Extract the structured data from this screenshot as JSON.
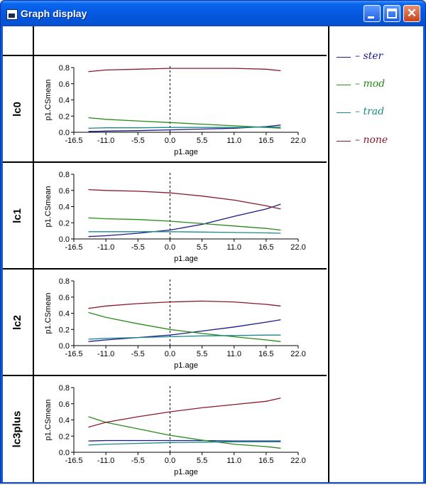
{
  "window": {
    "title": "Graph display",
    "close_glyph": "✕"
  },
  "panels": [
    {
      "label": "lc0"
    },
    {
      "label": "lc1"
    },
    {
      "label": "lc2"
    },
    {
      "label": "lc3plus"
    }
  ],
  "legend": [
    {
      "label": "– ster",
      "color": "#1a1a8a"
    },
    {
      "label": "– mod",
      "color": "#2a8a1a"
    },
    {
      "label": "– trad",
      "color": "#1a8a8a"
    },
    {
      "label": "– none",
      "color": "#8a1a2a"
    }
  ],
  "chart_data": [
    {
      "type": "line",
      "title": "lc0",
      "xlabel": "p1.age",
      "ylabel": "p1.CSmean",
      "xlim": [
        -16.5,
        22.0
      ],
      "ylim": [
        0,
        0.8
      ],
      "xticks": [
        "-16.5",
        "-11.0",
        "-5.5",
        "0.0",
        "5.5",
        "11.0",
        "16.5",
        "22.0"
      ],
      "yticks": [
        "0.0",
        "0.2",
        "0.4",
        "0.6",
        "0.8"
      ],
      "reference_line_x": 0,
      "x": [
        -14,
        -11,
        -5.5,
        0,
        5.5,
        11,
        16.5,
        19
      ],
      "series": [
        {
          "name": "ster",
          "color": "#1a1a8a",
          "values": [
            0.01,
            0.015,
            0.02,
            0.03,
            0.04,
            0.05,
            0.07,
            0.09
          ]
        },
        {
          "name": "mod",
          "color": "#2a8a1a",
          "values": [
            0.18,
            0.16,
            0.14,
            0.12,
            0.1,
            0.08,
            0.06,
            0.05
          ]
        },
        {
          "name": "trad",
          "color": "#1a8a8a",
          "values": [
            0.05,
            0.055,
            0.055,
            0.06,
            0.06,
            0.06,
            0.065,
            0.065
          ]
        },
        {
          "name": "none",
          "color": "#8a1a2a",
          "values": [
            0.75,
            0.77,
            0.78,
            0.79,
            0.79,
            0.79,
            0.78,
            0.76
          ]
        }
      ]
    },
    {
      "type": "line",
      "title": "lc1",
      "xlabel": "p1.age",
      "ylabel": "p1.CSmean",
      "xlim": [
        -16.5,
        22.0
      ],
      "ylim": [
        0,
        0.8
      ],
      "xticks": [
        "-16.5",
        "-11.0",
        "-5.5",
        "0.0",
        "5.5",
        "11.0",
        "16.5",
        "22.0"
      ],
      "yticks": [
        "0.0",
        "0.2",
        "0.4",
        "0.6",
        "0.8"
      ],
      "reference_line_x": 0,
      "x": [
        -14,
        -11,
        -5.5,
        0,
        5.5,
        11,
        16.5,
        19
      ],
      "series": [
        {
          "name": "ster",
          "color": "#1a1a8a",
          "values": [
            0.03,
            0.04,
            0.07,
            0.11,
            0.18,
            0.28,
            0.37,
            0.43
          ]
        },
        {
          "name": "mod",
          "color": "#2a8a1a",
          "values": [
            0.26,
            0.25,
            0.24,
            0.22,
            0.19,
            0.16,
            0.13,
            0.11
          ]
        },
        {
          "name": "trad",
          "color": "#1a8a8a",
          "values": [
            0.09,
            0.09,
            0.09,
            0.09,
            0.085,
            0.08,
            0.075,
            0.07
          ]
        },
        {
          "name": "none",
          "color": "#8a1a2a",
          "values": [
            0.61,
            0.6,
            0.59,
            0.57,
            0.53,
            0.48,
            0.41,
            0.37
          ]
        }
      ]
    },
    {
      "type": "line",
      "title": "lc2",
      "xlabel": "p1.age",
      "ylabel": "p1.CSmean",
      "xlim": [
        -16.5,
        22.0
      ],
      "ylim": [
        0,
        0.8
      ],
      "xticks": [
        "-16.5",
        "-11.0",
        "-5.5",
        "0.0",
        "5.5",
        "11.0",
        "16.5",
        "22.0"
      ],
      "yticks": [
        "0.0",
        "0.2",
        "0.4",
        "0.6",
        "0.8"
      ],
      "reference_line_x": 0,
      "x": [
        -14,
        -11,
        -5.5,
        0,
        5.5,
        11,
        16.5,
        19
      ],
      "series": [
        {
          "name": "ster",
          "color": "#1a1a8a",
          "values": [
            0.05,
            0.07,
            0.1,
            0.13,
            0.18,
            0.23,
            0.29,
            0.32
          ]
        },
        {
          "name": "mod",
          "color": "#2a8a1a",
          "values": [
            0.41,
            0.35,
            0.27,
            0.2,
            0.15,
            0.11,
            0.07,
            0.05
          ]
        },
        {
          "name": "trad",
          "color": "#1a8a8a",
          "values": [
            0.08,
            0.09,
            0.1,
            0.11,
            0.12,
            0.125,
            0.13,
            0.13
          ]
        },
        {
          "name": "none",
          "color": "#8a1a2a",
          "values": [
            0.46,
            0.49,
            0.52,
            0.54,
            0.55,
            0.54,
            0.51,
            0.49
          ]
        }
      ]
    },
    {
      "type": "line",
      "title": "lc3plus",
      "xlabel": "p1.age",
      "ylabel": "p1.CSmean",
      "xlim": [
        -16.5,
        22.0
      ],
      "ylim": [
        0,
        0.8
      ],
      "xticks": [
        "-16.5",
        "-11.0",
        "-5.5",
        "0.0",
        "5.5",
        "11.0",
        "16.5",
        "22.0"
      ],
      "yticks": [
        "0.0",
        "0.2",
        "0.4",
        "0.6",
        "0.8"
      ],
      "reference_line_x": 0,
      "x": [
        -14,
        -11,
        -5.5,
        0,
        5.5,
        11,
        16.5,
        19
      ],
      "series": [
        {
          "name": "ster",
          "color": "#1a1a8a",
          "values": [
            0.14,
            0.145,
            0.145,
            0.145,
            0.145,
            0.14,
            0.14,
            0.14
          ]
        },
        {
          "name": "mod",
          "color": "#2a8a1a",
          "values": [
            0.44,
            0.37,
            0.29,
            0.21,
            0.15,
            0.1,
            0.07,
            0.05
          ]
        },
        {
          "name": "trad",
          "color": "#1a8a8a",
          "values": [
            0.09,
            0.1,
            0.11,
            0.12,
            0.125,
            0.13,
            0.13,
            0.13
          ]
        },
        {
          "name": "none",
          "color": "#8a1a2a",
          "values": [
            0.31,
            0.37,
            0.44,
            0.5,
            0.55,
            0.59,
            0.63,
            0.67
          ]
        }
      ]
    }
  ]
}
